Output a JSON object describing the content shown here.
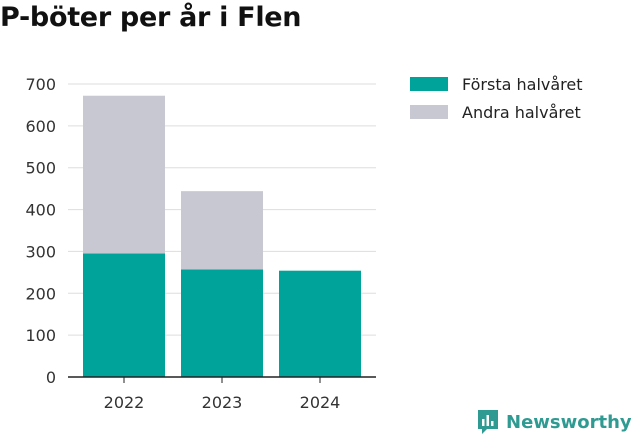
{
  "colors": {
    "first_half": "#00a39a",
    "second_half": "#c8c8d2",
    "logo": "#2e9a92"
  },
  "chart_data": {
    "type": "bar",
    "stacked": true,
    "title": "P-böter per år i Flen",
    "categories": [
      "2022",
      "2023",
      "2024"
    ],
    "series": [
      {
        "name": "Första halvåret",
        "values": [
          295,
          257,
          254
        ]
      },
      {
        "name": "Andra halvåret",
        "values": [
          377,
          187,
          0
        ]
      }
    ],
    "ylim": [
      0,
      700
    ],
    "yticks": [
      0,
      100,
      200,
      300,
      400,
      500,
      600,
      700
    ],
    "grid": true,
    "legend_position": "right"
  },
  "logo": {
    "text": "Newsworthy",
    "icon": "newsworthy-logo-icon"
  }
}
